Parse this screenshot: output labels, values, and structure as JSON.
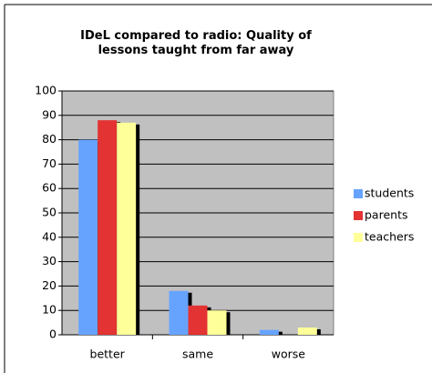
{
  "chart_data": {
    "type": "bar",
    "title": "IDeL compared to radio: Quality of lessons taught from far away",
    "categories": [
      "better",
      "same",
      "worse"
    ],
    "series": [
      {
        "name": "students",
        "color": "#66a3ff",
        "values": [
          80,
          18,
          2
        ]
      },
      {
        "name": "parents",
        "color": "#e33333",
        "values": [
          88,
          12,
          0
        ]
      },
      {
        "name": "teachers",
        "color": "#ffff99",
        "values": [
          87,
          10,
          3
        ]
      }
    ],
    "ylim": [
      0,
      100
    ],
    "yticks": [
      0,
      10,
      20,
      30,
      40,
      50,
      60,
      70,
      80,
      90,
      100
    ],
    "grid": true,
    "legend": "right",
    "plot_background": "#c0c0c0"
  }
}
